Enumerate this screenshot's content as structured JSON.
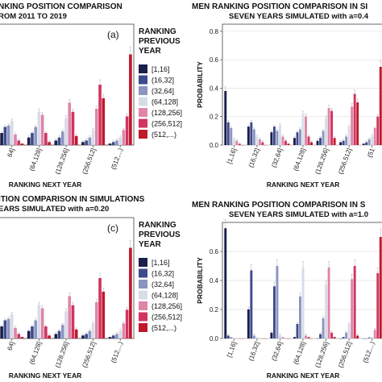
{
  "palette": [
    "#1b1f4a",
    "#3d4a8c",
    "#8c95bf",
    "#d6dde8",
    "#de85a8",
    "#cf3560",
    "#c0172b"
  ],
  "legend": {
    "title_lines": [
      "RANKING",
      "PREVIOUS",
      "YEAR"
    ],
    "entries": [
      "[1,16]",
      "(16,32]",
      "(32,64]",
      "(64,128]",
      "(128,256]",
      "(256,512]",
      "(512,...)"
    ]
  },
  "chart_data": [
    {
      "type": "bar",
      "title": "NKING POSITION COMPARISON",
      "subtitle": "ROM 2011 TO 2019",
      "panel_label": "(a)",
      "xlabel": "RANKING NEXT YEAR",
      "ylabel": "",
      "ylim": [
        0,
        0.8
      ],
      "yticks": [],
      "categories": [
        "[1,16]",
        "(16,32]",
        "(32,64]",
        "(64,128]",
        "(128,256]",
        "(256,512]",
        "(512,...)"
      ],
      "xtick_labels": [
        "64]",
        "(64,128]",
        "(128,256]",
        "(256,512]",
        "(512,...)"
      ],
      "values": [
        [
          0.38,
          0.12,
          0.08,
          0.05,
          0.03,
          0.02,
          0.01
        ],
        [
          0.16,
          0.15,
          0.12,
          0.08,
          0.05,
          0.03,
          0.02
        ],
        [
          0.12,
          0.12,
          0.13,
          0.12,
          0.09,
          0.05,
          0.03
        ],
        [
          0.04,
          0.06,
          0.16,
          0.22,
          0.18,
          0.1,
          0.05
        ],
        [
          0.03,
          0.04,
          0.07,
          0.2,
          0.28,
          0.24,
          0.1
        ],
        [
          0.01,
          0.02,
          0.03,
          0.08,
          0.22,
          0.4,
          0.19
        ],
        [
          0.0,
          0.0,
          0.01,
          0.02,
          0.06,
          0.31,
          0.6
        ]
      ]
    },
    {
      "type": "bar",
      "title": "MEN RANKING POSITION COMPARISON IN SI",
      "subtitle": "SEVEN YEARS SIMULATED with a=0.4",
      "xlabel": "RANKING NEXT YEAR",
      "ylabel": "PROBABILITY",
      "ylim": [
        0,
        0.85
      ],
      "yticks": [
        0.0,
        0.2,
        0.4,
        0.6,
        0.8
      ],
      "categories": [
        "[1,16]",
        "(16,32]",
        "(32,64]",
        "(64,128]",
        "(128,256]",
        "(256,512]",
        "(512,...)"
      ],
      "xtick_labels": [
        "[1,16]",
        "(16,32]",
        "(32,64]",
        "(64,128]",
        "(128,256]",
        "(256,512]",
        "(51"
      ],
      "values": [
        [
          0.38,
          0.13,
          0.09,
          0.05,
          0.03,
          0.02,
          0.01
        ],
        [
          0.16,
          0.16,
          0.13,
          0.09,
          0.05,
          0.03,
          0.02
        ],
        [
          0.12,
          0.11,
          0.1,
          0.11,
          0.1,
          0.06,
          0.04
        ],
        [
          0.04,
          0.06,
          0.14,
          0.22,
          0.19,
          0.13,
          0.06
        ],
        [
          0.03,
          0.04,
          0.06,
          0.2,
          0.26,
          0.27,
          0.12
        ],
        [
          0.01,
          0.02,
          0.03,
          0.06,
          0.24,
          0.36,
          0.2
        ],
        [
          0.0,
          0.0,
          0.01,
          0.02,
          0.05,
          0.3,
          0.55
        ]
      ]
    },
    {
      "type": "bar",
      "title": "ITION COMPARISON IN SIMULATIONS",
      "subtitle": "EARS SIMULATED with a=0.20",
      "panel_label": "(c)",
      "xlabel": "RANKING NEXT YEAR",
      "ylabel": "",
      "ylim": [
        0,
        0.8
      ],
      "yticks": [],
      "categories": [
        "[1,16]",
        "(16,32]",
        "(32,64]",
        "(64,128]",
        "(128,256]",
        "(256,512]",
        "(512,...)"
      ],
      "xtick_labels": [
        "64]",
        "(64,128]",
        "(128,256]",
        "(256,512]",
        "(512,...)"
      ],
      "values": [
        [
          0.38,
          0.12,
          0.08,
          0.05,
          0.03,
          0.02,
          0.01
        ],
        [
          0.16,
          0.15,
          0.12,
          0.08,
          0.05,
          0.03,
          0.02
        ],
        [
          0.12,
          0.12,
          0.13,
          0.12,
          0.09,
          0.05,
          0.03
        ],
        [
          0.04,
          0.06,
          0.16,
          0.22,
          0.18,
          0.1,
          0.05
        ],
        [
          0.03,
          0.04,
          0.07,
          0.2,
          0.28,
          0.24,
          0.1
        ],
        [
          0.01,
          0.02,
          0.03,
          0.08,
          0.22,
          0.4,
          0.19
        ],
        [
          0.0,
          0.0,
          0.01,
          0.02,
          0.06,
          0.31,
          0.6
        ]
      ]
    },
    {
      "type": "bar",
      "title": "MEN RANKING POSITION COMPARISON IN S",
      "subtitle": "SEVEN YEARS SIMULATED with a=1.0",
      "xlabel": "RANKING NEXT YEAR",
      "ylabel": "PROBABILITY",
      "ylim": [
        0,
        0.8
      ],
      "yticks": [
        0.0,
        0.2,
        0.4,
        0.6
      ],
      "categories": [
        "[1,16]",
        "(16,32]",
        "(32,64]",
        "(64,128]",
        "(128,256]",
        "(256,512]",
        "(512,...)"
      ],
      "xtick_labels": [
        "[1,16]",
        "(16,32]",
        "(32,64]",
        "(64,128]",
        "(128,256]",
        "(256,512]",
        "(512,...)"
      ],
      "values": [
        [
          0.76,
          0.2,
          0.04,
          0.01,
          0.0,
          0.0,
          0.0
        ],
        [
          0.02,
          0.47,
          0.36,
          0.1,
          0.03,
          0.01,
          0.0
        ],
        [
          0.01,
          0.02,
          0.5,
          0.29,
          0.14,
          0.04,
          0.01
        ],
        [
          0.0,
          0.01,
          0.02,
          0.49,
          0.37,
          0.1,
          0.01
        ],
        [
          0.0,
          0.0,
          0.01,
          0.02,
          0.49,
          0.41,
          0.06
        ],
        [
          0.0,
          0.0,
          0.0,
          0.01,
          0.04,
          0.5,
          0.45
        ],
        [
          0.0,
          0.0,
          0.0,
          0.0,
          0.01,
          0.02,
          0.7
        ]
      ]
    }
  ]
}
